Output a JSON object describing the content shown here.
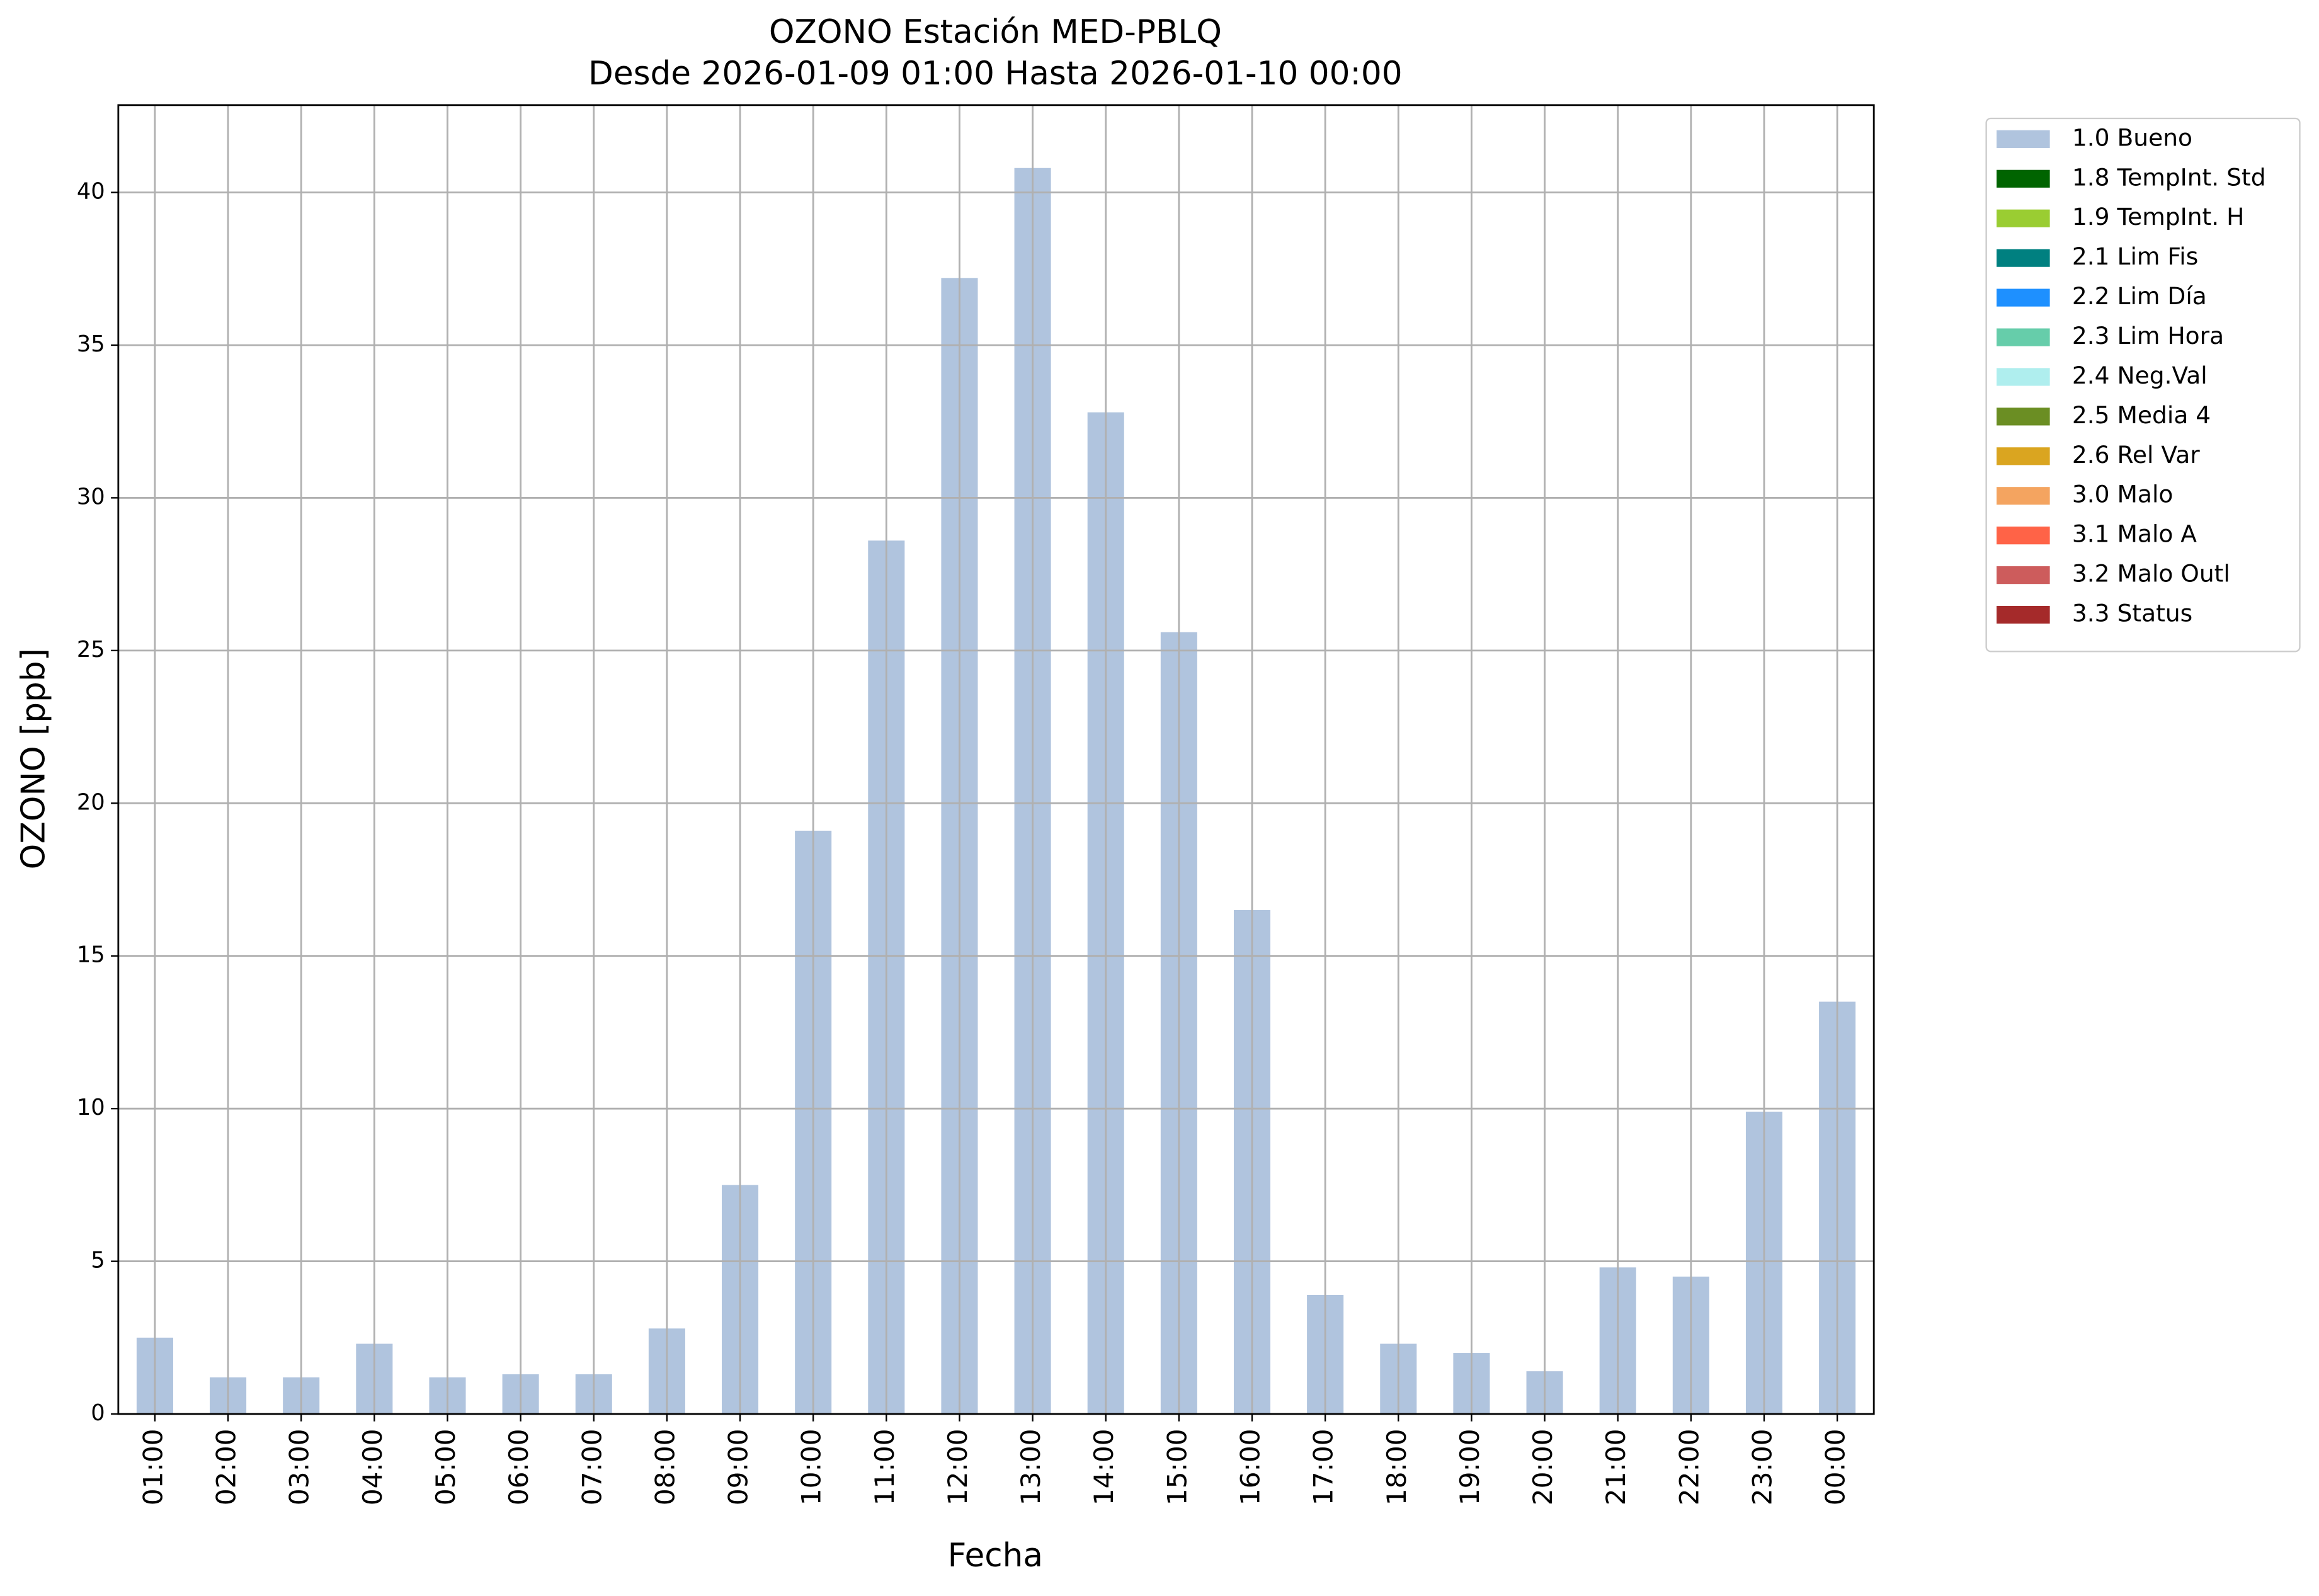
{
  "chart_data": {
    "type": "bar",
    "title": "OZONO Estación MED-PBLQ",
    "subtitle": "Desde 2026-01-09 01:00 Hasta 2026-01-10 00:00",
    "x_label": "Fecha",
    "y_label": "OZONO [ppb]",
    "categories": [
      "01:00",
      "02:00",
      "03:00",
      "04:00",
      "05:00",
      "06:00",
      "07:00",
      "08:00",
      "09:00",
      "10:00",
      "11:00",
      "12:00",
      "13:00",
      "14:00",
      "15:00",
      "16:00",
      "17:00",
      "18:00",
      "19:00",
      "20:00",
      "21:00",
      "22:00",
      "23:00",
      "00:00"
    ],
    "series": [
      {
        "name": "1.0 Bueno",
        "color": "#b0c4de",
        "values": [
          2.5,
          1.2,
          1.2,
          2.3,
          1.2,
          1.3,
          1.3,
          2.8,
          7.5,
          19.1,
          28.6,
          37.2,
          40.8,
          32.8,
          25.6,
          16.5,
          3.9,
          2.3,
          2.0,
          1.4,
          4.8,
          4.5,
          9.9,
          13.5
        ]
      },
      {
        "name": "1.8 TempInt. Std",
        "color": "#006400"
      },
      {
        "name": "1.9 TempInt. H",
        "color": "#9acd32"
      },
      {
        "name": "2.1 Lim Fis",
        "color": "#008080"
      },
      {
        "name": "2.2 Lim Día",
        "color": "#1e90ff"
      },
      {
        "name": "2.3 Lim Hora",
        "color": "#66cdaa"
      },
      {
        "name": "2.4 Neg.Val",
        "color": "#afeeee"
      },
      {
        "name": "2.5 Media 4",
        "color": "#6b8e23"
      },
      {
        "name": "2.6 Rel Var",
        "color": "#daa520"
      },
      {
        "name": "3.0 Malo",
        "color": "#f4a460"
      },
      {
        "name": "3.1 Malo A",
        "color": "#ff6347"
      },
      {
        "name": "3.2 Malo Outl",
        "color": "#cd5c5c"
      },
      {
        "name": "3.3 Status",
        "color": "#a52a2a"
      }
    ],
    "ylim": [
      0,
      42.86
    ],
    "yticks": [
      0,
      5,
      10,
      15,
      20,
      25,
      30,
      35,
      40
    ],
    "grid": true,
    "legend": "outside-upper-right"
  }
}
